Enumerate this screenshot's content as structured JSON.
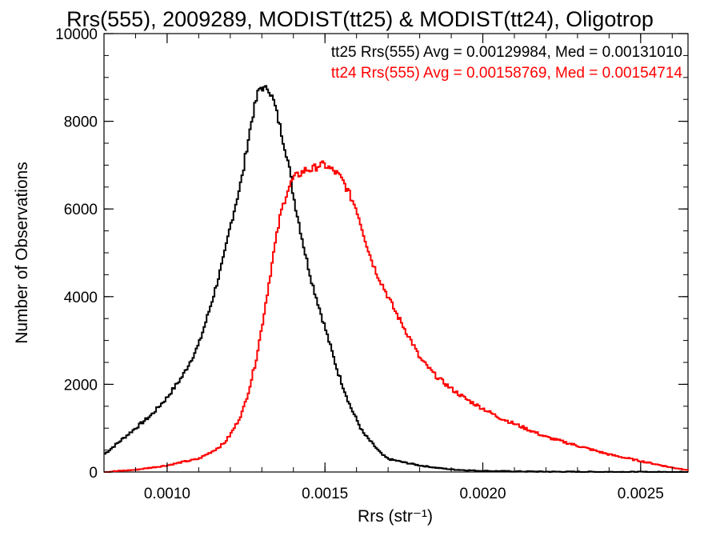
{
  "chart_data": {
    "type": "line",
    "title": "Rrs(555), 2009289, MODIST(tt25) & MODIST(tt24), Oligotrop",
    "xlabel": "Rrs (str⁻¹)",
    "ylabel": "Number of Observations",
    "xlim": [
      0.0008,
      0.00265
    ],
    "ylim": [
      0,
      10000
    ],
    "x_ticks": [
      0.001,
      0.0015,
      0.002,
      0.0025
    ],
    "x_tick_labels": [
      "0.0010",
      "0.0015",
      "0.0020",
      "0.0025"
    ],
    "y_ticks": [
      0,
      2000,
      4000,
      6000,
      8000,
      10000
    ],
    "y_tick_labels": [
      "0",
      "2000",
      "4000",
      "6000",
      "8000",
      "10000"
    ],
    "grid": false,
    "legend_position": "top-right",
    "series": [
      {
        "name": "tt25 Rrs(555) Avg = 0.00129984, Med = 0.00131010",
        "color": "#000000",
        "step": true,
        "x": [
          0.0008,
          0.00085,
          0.0009,
          0.00095,
          0.001,
          0.00105,
          0.0011,
          0.00113,
          0.00115,
          0.00118,
          0.0012,
          0.00122,
          0.00124,
          0.00125,
          0.00126,
          0.00127,
          0.00128,
          0.00129,
          0.0013,
          0.00131,
          0.00132,
          0.00133,
          0.00134,
          0.00135,
          0.00136,
          0.00137,
          0.00138,
          0.00139,
          0.0014,
          0.00142,
          0.00144,
          0.00146,
          0.00148,
          0.0015,
          0.00152,
          0.00154,
          0.00156,
          0.00158,
          0.0016,
          0.00162,
          0.00165,
          0.00168,
          0.0017,
          0.00175,
          0.0018,
          0.00185,
          0.0019,
          0.00195,
          0.002,
          0.0021,
          0.0022,
          0.0023,
          0.0024,
          0.0025,
          0.00265
        ],
        "y": [
          400,
          700,
          1000,
          1300,
          1700,
          2200,
          2900,
          3600,
          4100,
          4900,
          5600,
          6200,
          6800,
          7300,
          7700,
          8100,
          8400,
          8700,
          8800,
          8700,
          8800,
          8600,
          8400,
          8100,
          7800,
          7500,
          7200,
          6800,
          6300,
          5600,
          4900,
          4300,
          3800,
          3300,
          2800,
          2300,
          1900,
          1500,
          1200,
          900,
          650,
          400,
          300,
          220,
          150,
          100,
          60,
          40,
          25,
          15,
          8,
          5,
          3,
          1,
          0
        ]
      },
      {
        "name": "tt24 Rrs(555) Avg = 0.00158769, Med = 0.00154714",
        "color": "#ff0000",
        "step": true,
        "x": [
          0.0008,
          0.0009,
          0.001,
          0.00105,
          0.0011,
          0.00115,
          0.00118,
          0.0012,
          0.00122,
          0.00124,
          0.00126,
          0.00128,
          0.0013,
          0.00132,
          0.00134,
          0.00136,
          0.00138,
          0.0014,
          0.00142,
          0.00144,
          0.00146,
          0.00148,
          0.0015,
          0.00152,
          0.00154,
          0.00156,
          0.00158,
          0.0016,
          0.00162,
          0.00164,
          0.00166,
          0.00168,
          0.0017,
          0.00172,
          0.00175,
          0.00178,
          0.0018,
          0.00185,
          0.0019,
          0.00195,
          0.002,
          0.00205,
          0.0021,
          0.00215,
          0.0022,
          0.0023,
          0.0024,
          0.0025,
          0.0026,
          0.00265
        ],
        "y": [
          0,
          50,
          150,
          230,
          300,
          500,
          650,
          850,
          1100,
          1400,
          1900,
          2500,
          3300,
          4200,
          5100,
          5900,
          6400,
          6700,
          6800,
          6900,
          6900,
          7000,
          7000,
          6900,
          6800,
          6600,
          6300,
          6000,
          5500,
          5000,
          4600,
          4300,
          4000,
          3700,
          3300,
          2900,
          2600,
          2200,
          1900,
          1650,
          1450,
          1250,
          1100,
          950,
          800,
          600,
          400,
          250,
          100,
          50
        ]
      }
    ]
  }
}
